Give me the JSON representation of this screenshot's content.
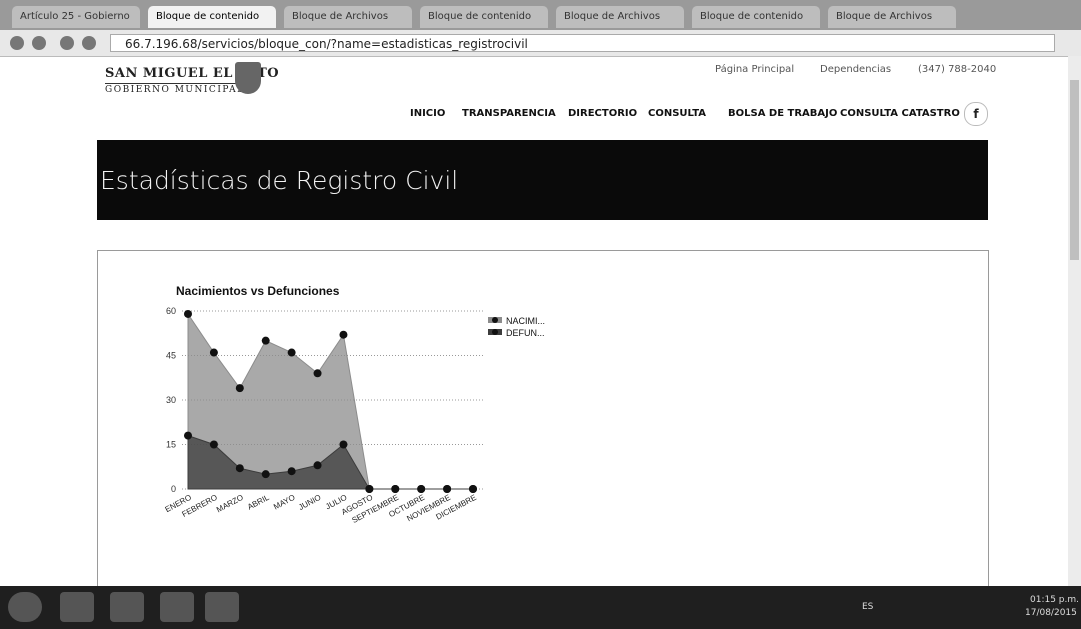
{
  "browser": {
    "tabs": [
      "Artículo 25 - Gobierno",
      "Bloque de contenido",
      "Bloque de Archivos",
      "Bloque de contenido",
      "Bloque de Archivos",
      "Bloque de contenido",
      "Bloque de Archivos"
    ],
    "url": "66.7.196.68/servicios/bloque_con/?name=estadisticas_registrocivil"
  },
  "header": {
    "logo_title": "SAN MIGUEL EL ALTO",
    "logo_subtitle": "GOBIERNO MUNICIPAL",
    "top_links": [
      "Página Principal",
      "Dependencias",
      "(347) 788-2040"
    ],
    "nav": [
      "INICIO",
      "TRANSPARENCIA",
      "DIRECTORIO",
      "CONSULTA",
      "BOLSA DE TRABAJO",
      "CONSULTA CATASTRO"
    ]
  },
  "page_title": "Estadísticas de Registro Civil",
  "chart_data": {
    "type": "area",
    "title": "Nacimientos vs Defunciones",
    "categories": [
      "ENERO",
      "FEBRERO",
      "MARZO",
      "ABRIL",
      "MAYO",
      "JUNIO",
      "JULIO",
      "AGOSTO",
      "SEPTIEMBRE",
      "OCTUBRE",
      "NOVIEMBRE",
      "DICIEMBRE"
    ],
    "series": [
      {
        "name": "NACIMI...",
        "color": "#8c8c8c",
        "values": [
          59,
          46,
          34,
          50,
          46,
          39,
          52,
          0,
          0,
          0,
          0,
          0
        ]
      },
      {
        "name": "DEFUN...",
        "color": "#3c3c3c",
        "values": [
          18,
          15,
          7,
          5,
          6,
          8,
          15,
          0,
          0,
          0,
          0,
          0
        ]
      }
    ],
    "ylim": [
      0,
      60
    ],
    "yticks": [
      0,
      15,
      30,
      45,
      60
    ],
    "grid": true,
    "legend": "right"
  },
  "taskbar": {
    "language": "ES",
    "time": "01:15 p.m.",
    "date": "17/08/2015"
  }
}
